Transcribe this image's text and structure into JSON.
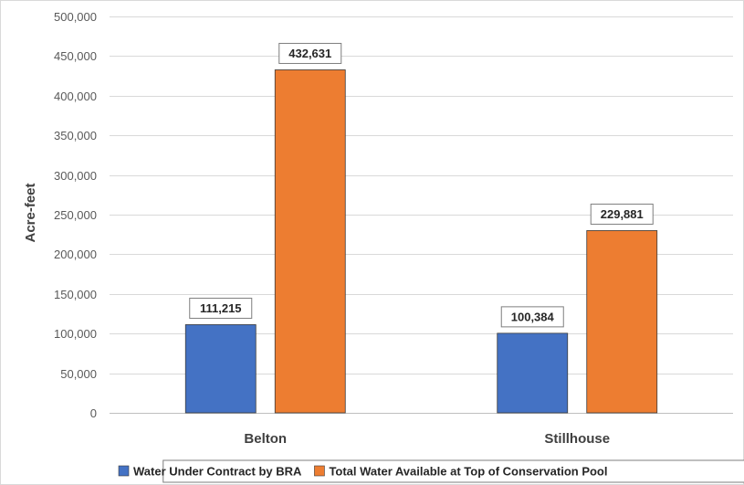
{
  "chart_data": {
    "type": "bar",
    "categories": [
      "Belton",
      "Stillhouse"
    ],
    "series": [
      {
        "name": "Water Under Contract by BRA",
        "values": [
          111215,
          100384
        ],
        "color": "#4472C4",
        "labels": [
          "111,215",
          "100,384"
        ]
      },
      {
        "name": "Total Water Available at Top of Conservation Pool",
        "values": [
          432631,
          229881
        ],
        "color": "#ED7D31",
        "labels": [
          "432,631",
          "229,881"
        ]
      }
    ],
    "ylabel": "Acre-feet",
    "xlabel": "",
    "ylim": [
      0,
      500000
    ],
    "yticks": [
      0,
      50000,
      100000,
      150000,
      200000,
      250000,
      300000,
      350000,
      400000,
      450000,
      500000
    ],
    "ytick_labels": [
      "0",
      "50,000",
      "100,000",
      "150,000",
      "200,000",
      "250,000",
      "300,000",
      "350,000",
      "400,000",
      "450,000",
      "500,000"
    ],
    "grid": true,
    "legend_position": "bottom"
  }
}
